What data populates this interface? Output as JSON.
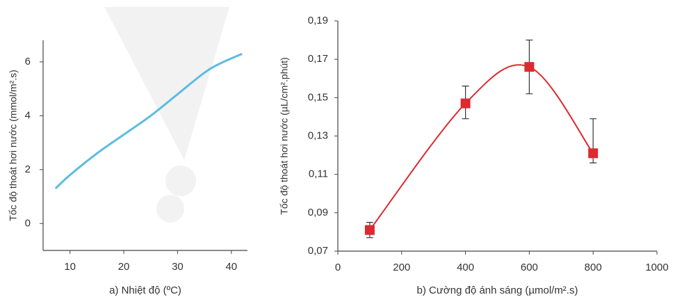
{
  "chart_data": [
    {
      "type": "line",
      "x_label": "a) Nhiệt độ (ºC)",
      "y_label": "Tốc độ thoát hơi nước (mmol/m².s)",
      "xlim": [
        5,
        43
      ],
      "ylim": [
        -1,
        6.8
      ],
      "xticks": [
        10,
        20,
        30,
        40
      ],
      "yticks": [
        0,
        2,
        4,
        6
      ],
      "series": [
        {
          "color": "#5bbde0",
          "x": [
            7.3,
            10,
            15,
            20,
            25,
            30,
            35,
            38,
            42
          ],
          "values": [
            1.3,
            1.8,
            2.6,
            3.3,
            4.0,
            4.8,
            5.6,
            5.95,
            6.3
          ]
        }
      ]
    },
    {
      "type": "errorbar",
      "x_label": "b) Cường độ ánh sáng (µmol/m².s)",
      "y_label": "Tốc độ thoát hơi nước (µL/cm².phút)",
      "xlim": [
        0,
        1000
      ],
      "ylim": [
        0.07,
        0.19
      ],
      "xticks": [
        0,
        200,
        400,
        600,
        800,
        1000
      ],
      "yticks": [
        {
          "value": 0.07,
          "label": "0,07"
        },
        {
          "value": 0.09,
          "label": "0,09"
        },
        {
          "value": 0.11,
          "label": "0,11"
        },
        {
          "value": 0.13,
          "label": "0,13"
        },
        {
          "value": 0.15,
          "label": "0,15"
        },
        {
          "value": 0.17,
          "label": "0,17"
        },
        {
          "value": 0.19,
          "label": "0,19"
        }
      ],
      "series": [
        {
          "color": "#dc2a30",
          "x": [
            100,
            400,
            600,
            800
          ],
          "values": [
            0.081,
            0.147,
            0.166,
            0.121
          ],
          "lower": [
            0.077,
            0.139,
            0.152,
            0.116
          ],
          "upper": [
            0.085,
            0.156,
            0.18,
            0.139
          ]
        }
      ]
    }
  ]
}
